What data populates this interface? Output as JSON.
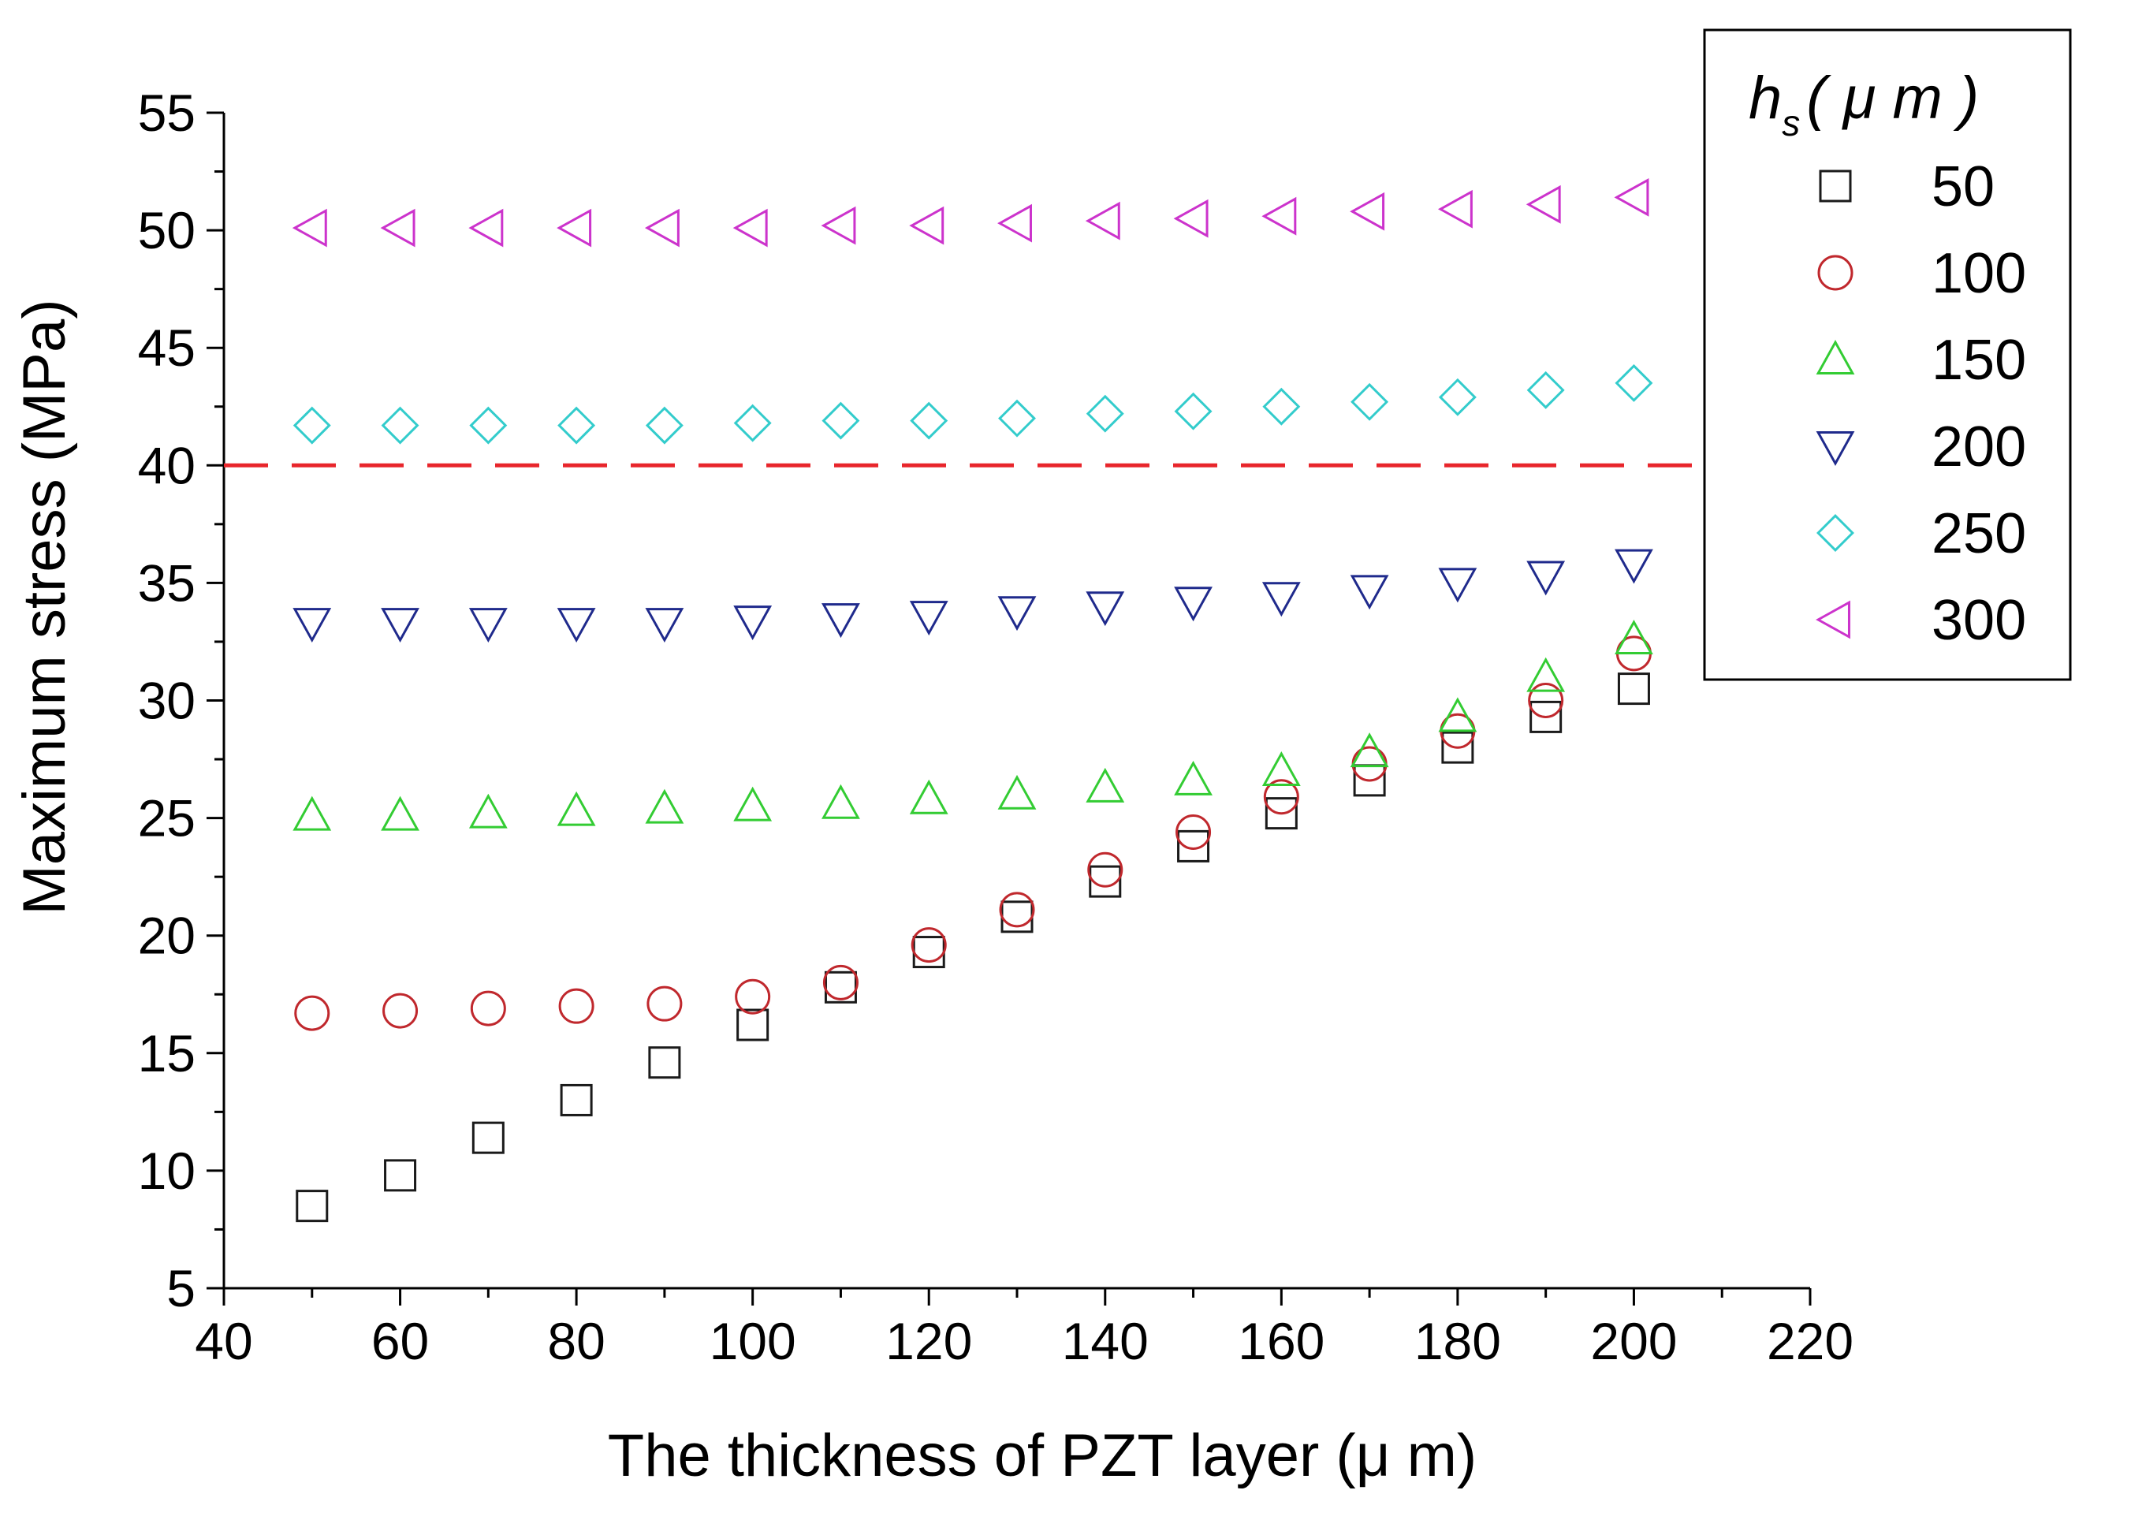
{
  "chart_data": {
    "type": "scatter",
    "title": "",
    "xlabel": "The thickness of PZT layer (μ  m)",
    "ylabel": "Maximum stress (MPa)",
    "xlim": [
      40,
      220
    ],
    "ylim": [
      5,
      55
    ],
    "xticks": [
      40,
      60,
      80,
      100,
      120,
      140,
      160,
      180,
      200,
      220
    ],
    "yticks": [
      5,
      10,
      15,
      20,
      25,
      30,
      35,
      40,
      45,
      50,
      55
    ],
    "grid": false,
    "legend_title_main": "h",
    "legend_title_sub": "s",
    "legend_title_unit": "( μ  m )",
    "legend_position": "top-right",
    "x": [
      50,
      60,
      70,
      80,
      90,
      100,
      110,
      120,
      130,
      140,
      150,
      160,
      170,
      180,
      190,
      200
    ],
    "series": [
      {
        "name": "50",
        "marker": "square",
        "color": "#1a1a1a",
        "values": [
          8.5,
          9.8,
          11.4,
          13.0,
          14.6,
          16.2,
          17.8,
          19.3,
          20.8,
          22.3,
          23.8,
          25.2,
          26.6,
          28.0,
          29.3,
          30.5
        ]
      },
      {
        "name": "100",
        "marker": "circle",
        "color": "#c0282d",
        "values": [
          16.7,
          16.8,
          16.9,
          17.0,
          17.1,
          17.4,
          18.0,
          19.6,
          21.1,
          22.8,
          24.4,
          25.9,
          27.3,
          28.7,
          30.0,
          32.0
        ]
      },
      {
        "name": "150",
        "marker": "triangle-up",
        "color": "#33cc33",
        "values": [
          25.1,
          25.1,
          25.2,
          25.3,
          25.4,
          25.5,
          25.6,
          25.8,
          26.0,
          26.3,
          26.6,
          27.0,
          27.8,
          29.3,
          31.0,
          32.6
        ]
      },
      {
        "name": "200",
        "marker": "triangle-down",
        "color": "#1f2a8c",
        "values": [
          33.3,
          33.3,
          33.3,
          33.3,
          33.3,
          33.4,
          33.5,
          33.6,
          33.8,
          34.0,
          34.2,
          34.4,
          34.7,
          35.0,
          35.3,
          35.8
        ]
      },
      {
        "name": "250",
        "marker": "diamond",
        "color": "#33cccc",
        "values": [
          41.7,
          41.7,
          41.7,
          41.7,
          41.7,
          41.8,
          41.9,
          41.9,
          42.0,
          42.2,
          42.3,
          42.5,
          42.7,
          42.9,
          43.2,
          43.5
        ]
      },
      {
        "name": "300",
        "marker": "triangle-left",
        "color": "#cc33cc",
        "values": [
          50.1,
          50.1,
          50.1,
          50.1,
          50.1,
          50.1,
          50.2,
          50.2,
          50.3,
          50.4,
          50.5,
          50.6,
          50.8,
          50.9,
          51.1,
          51.4
        ]
      }
    ],
    "reference_line": {
      "y": 40,
      "color": "#e8252b",
      "style": "dashed"
    }
  }
}
